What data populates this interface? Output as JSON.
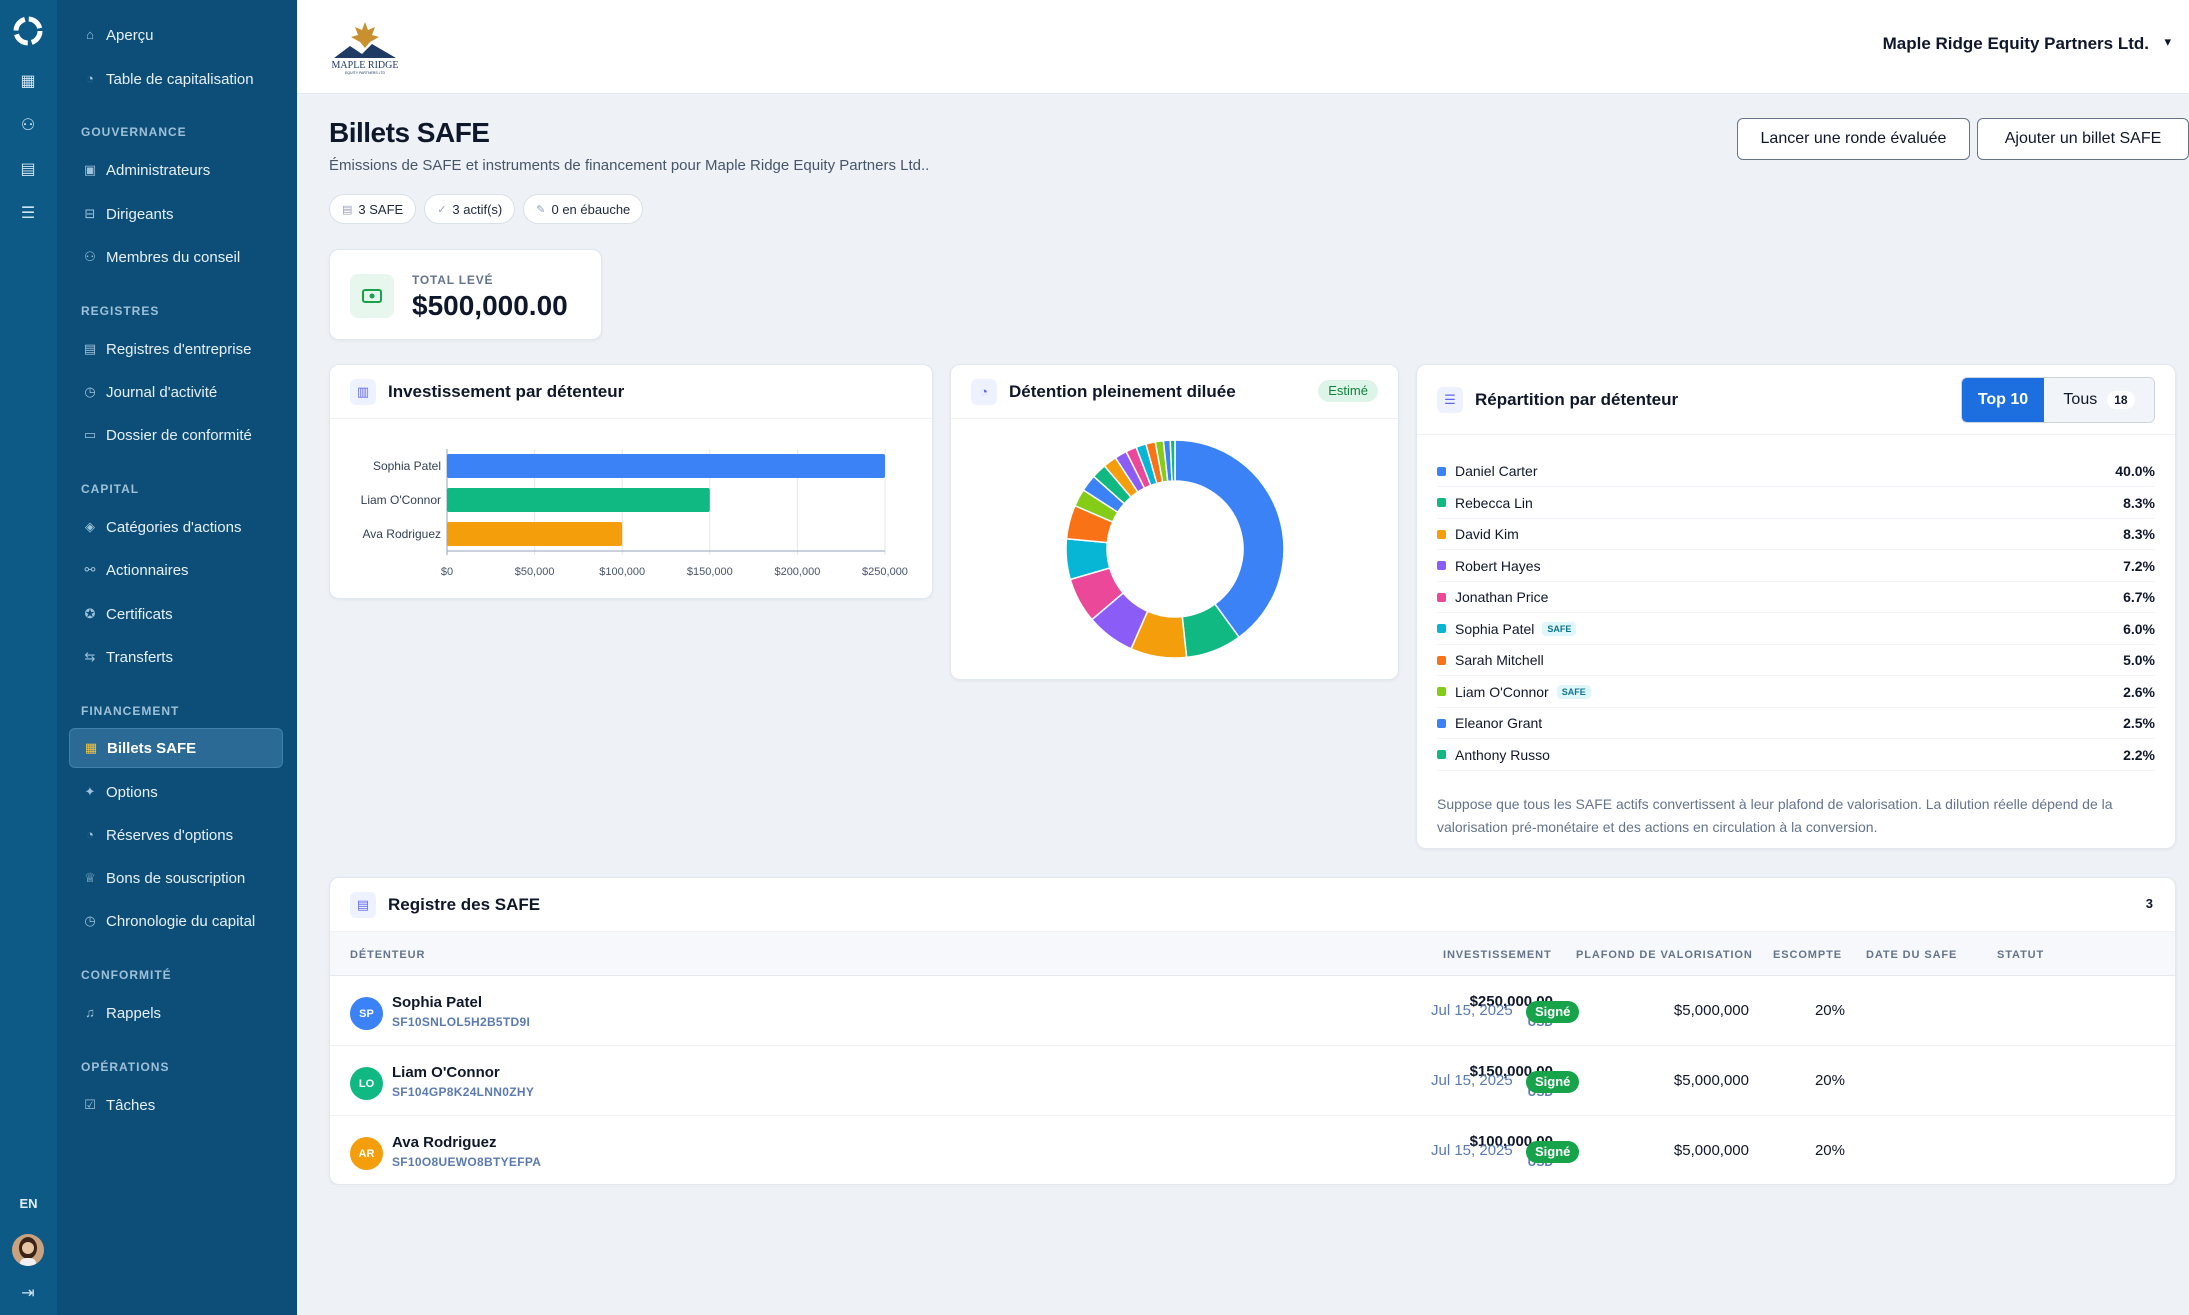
{
  "rail": {
    "lang": "EN"
  },
  "sidebar": {
    "top_items": [
      {
        "label": "Aperçu",
        "icon": "home-icon"
      },
      {
        "label": "Table de capitalisation",
        "icon": "pie-icon"
      }
    ],
    "sections": [
      {
        "title": "GOUVERNANCE",
        "items": [
          {
            "label": "Administrateurs"
          },
          {
            "label": "Dirigeants"
          },
          {
            "label": "Membres du conseil"
          }
        ]
      },
      {
        "title": "REGISTRES",
        "items": [
          {
            "label": "Registres d'entreprise"
          },
          {
            "label": "Journal d'activité"
          },
          {
            "label": "Dossier de conformité"
          }
        ]
      },
      {
        "title": "CAPITAL",
        "items": [
          {
            "label": "Catégories d'actions"
          },
          {
            "label": "Actionnaires"
          },
          {
            "label": "Certificats"
          },
          {
            "label": "Transferts"
          }
        ]
      },
      {
        "title": "FINANCEMENT",
        "items": [
          {
            "label": "Billets SAFE"
          },
          {
            "label": "Options"
          },
          {
            "label": "Réserves d'options"
          },
          {
            "label": "Bons de souscription"
          },
          {
            "label": "Chronologie du capital"
          }
        ]
      },
      {
        "title": "CONFORMITÉ",
        "items": [
          {
            "label": "Rappels"
          }
        ]
      },
      {
        "title": "OPÉRATIONS",
        "items": [
          {
            "label": "Tâches"
          }
        ]
      }
    ]
  },
  "header": {
    "brand_name": "MAPLE RIDGE",
    "brand_tagline": "EQUITY PARTNERS LTD",
    "company": "Maple Ridge Equity Partners Ltd."
  },
  "page": {
    "title": "Billets SAFE",
    "subtitle": "Émissions de SAFE et instruments de financement pour Maple Ridge Equity Partners Ltd..",
    "chips": [
      "3 SAFE",
      "3 actif(s)",
      "0 en ébauche"
    ],
    "btn_round": "Lancer une ronde évaluée",
    "btn_add": "Ajouter un billet SAFE"
  },
  "stat": {
    "label": "TOTAL LEVÉ",
    "value": "$500,000.00"
  },
  "chart_data": [
    {
      "type": "bar",
      "title": "Investissement par détenteur",
      "categories": [
        "Sophia Patel",
        "Liam O'Connor",
        "Ava Rodriguez"
      ],
      "values": [
        250000,
        150000,
        100000
      ],
      "colors": [
        "#3b82f6",
        "#10b981",
        "#f59e0b"
      ],
      "x_ticks": [
        "$0",
        "$50,000",
        "$100,000",
        "$150,000",
        "$200,000",
        "$250,000"
      ],
      "xlim": [
        0,
        250000
      ]
    },
    {
      "type": "pie",
      "title": "Détention pleinement diluée",
      "badge": "Estimé",
      "values": [
        40.0,
        8.3,
        8.3,
        7.2,
        6.7,
        6.0,
        5.0,
        2.6,
        2.5,
        2.2,
        2.0,
        1.8,
        1.6,
        1.5,
        1.4,
        1.2,
        1.0,
        0.7
      ],
      "colors": [
        "#3b82f6",
        "#10b981",
        "#f59e0b",
        "#8b5cf6",
        "#ec4899",
        "#06b6d4",
        "#f97316",
        "#84cc16",
        "#3b82f6",
        "#10b981",
        "#f59e0b",
        "#8b5cf6",
        "#ec4899",
        "#06b6d4",
        "#f97316",
        "#84cc16",
        "#3b82f6",
        "#10b981"
      ]
    }
  ],
  "distribution": {
    "title": "Répartition par détenteur",
    "tab_top": "Top 10",
    "tab_all": "Tous",
    "tab_all_count": "18",
    "rows": [
      {
        "name": "Daniel Carter",
        "pct": "40.0%",
        "color": "#3b82f6",
        "tag": ""
      },
      {
        "name": "Rebecca Lin",
        "pct": "8.3%",
        "color": "#10b981",
        "tag": ""
      },
      {
        "name": "David Kim",
        "pct": "8.3%",
        "color": "#f59e0b",
        "tag": ""
      },
      {
        "name": "Robert Hayes",
        "pct": "7.2%",
        "color": "#8b5cf6",
        "tag": ""
      },
      {
        "name": "Jonathan Price",
        "pct": "6.7%",
        "color": "#ec4899",
        "tag": ""
      },
      {
        "name": "Sophia Patel",
        "pct": "6.0%",
        "color": "#06b6d4",
        "tag": "SAFE"
      },
      {
        "name": "Sarah Mitchell",
        "pct": "5.0%",
        "color": "#f97316",
        "tag": ""
      },
      {
        "name": "Liam O'Connor",
        "pct": "2.6%",
        "color": "#84cc16",
        "tag": "SAFE"
      },
      {
        "name": "Eleanor Grant",
        "pct": "2.5%",
        "color": "#3b82f6",
        "tag": ""
      },
      {
        "name": "Anthony Russo",
        "pct": "2.2%",
        "color": "#10b981",
        "tag": ""
      }
    ],
    "note": "Suppose que tous les SAFE actifs convertissent à leur plafond de valorisation. La dilution réelle dépend de la valorisation pré-monétaire et des actions en circulation à la conversion."
  },
  "register": {
    "title": "Registre des SAFE",
    "count": "3",
    "columns": [
      "DÉTENTEUR",
      "INVESTISSEMENT",
      "PLAFOND DE VALORISATION",
      "ESCOMPTE",
      "DATE DU SAFE",
      "STATUT"
    ],
    "rows": [
      {
        "initials": "SP",
        "color": "#3b82f6",
        "name": "Sophia Patel",
        "id": "SF10SNLOL5H2B5TD9I",
        "amount": "$250,000.00",
        "currency": "USD",
        "cap": "$5,000,000",
        "discount": "20%",
        "date": "Jul 15, 2025",
        "status": "Signé"
      },
      {
        "initials": "LO",
        "color": "#10b981",
        "name": "Liam O'Connor",
        "id": "SF104GP8K24LNN0ZHY",
        "amount": "$150,000.00",
        "currency": "USD",
        "cap": "$5,000,000",
        "discount": "20%",
        "date": "Jul 15, 2025",
        "status": "Signé"
      },
      {
        "initials": "AR",
        "color": "#f59e0b",
        "name": "Ava Rodriguez",
        "id": "SF10O8UEWO8BTYEFPA",
        "amount": "$100,000.00",
        "currency": "USD",
        "cap": "$5,000,000",
        "discount": "20%",
        "date": "Jul 15, 2025",
        "status": "Signé"
      }
    ]
  }
}
